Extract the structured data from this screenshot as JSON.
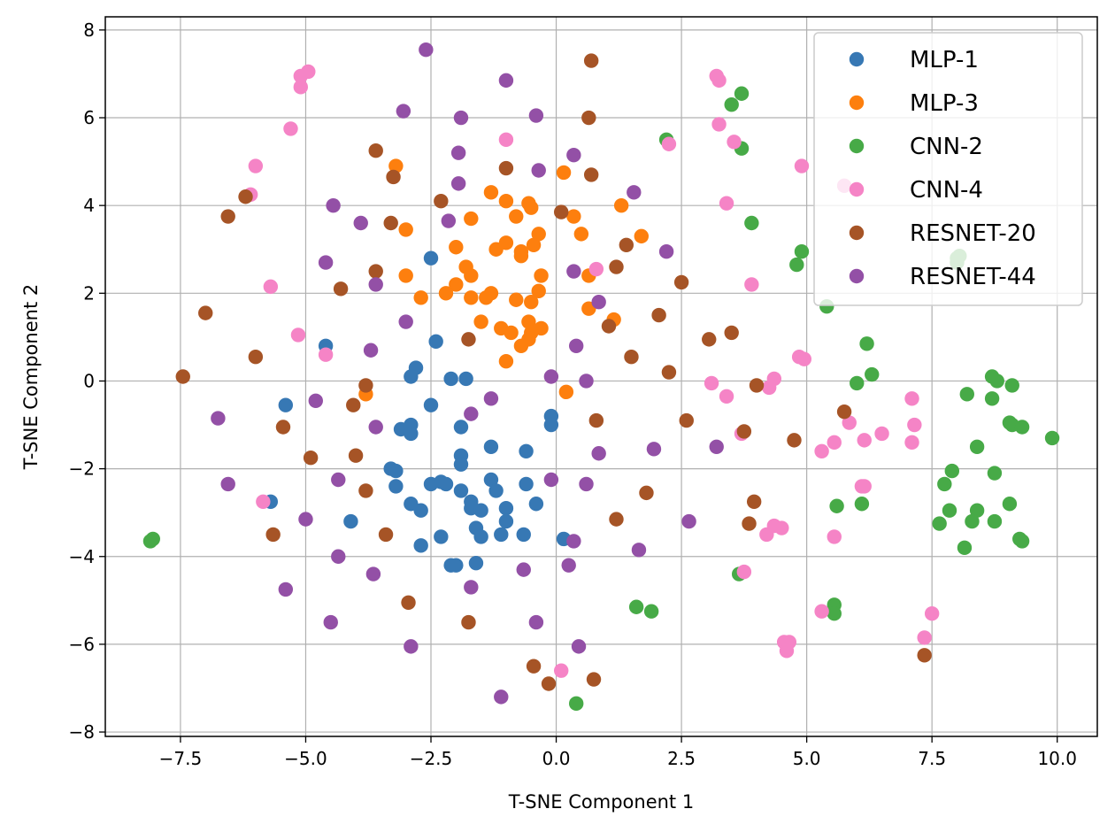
{
  "chart_data": {
    "type": "scatter",
    "xlabel": "T-SNE Component 1",
    "ylabel": "T-SNE Component 2",
    "xlim": [
      -9.0,
      10.8
    ],
    "ylim": [
      -8.1,
      8.3
    ],
    "xticks": [
      -7.5,
      -5.0,
      -2.5,
      0.0,
      2.5,
      5.0,
      7.5,
      10.0
    ],
    "xtick_labels": [
      "−7.5",
      "−5.0",
      "−2.5",
      "0.0",
      "2.5",
      "5.0",
      "7.5",
      "10.0"
    ],
    "yticks": [
      -8,
      -6,
      -4,
      -2,
      0,
      2,
      4,
      6,
      8
    ],
    "ytick_labels": [
      "−8",
      "−6",
      "−4",
      "−2",
      "0",
      "2",
      "4",
      "6",
      "8"
    ],
    "grid": true,
    "legend_position": "top-right",
    "series": [
      {
        "name": "MLP-1",
        "color": "#3778b4",
        "points": [
          [
            -2.5,
            2.8
          ],
          [
            -4.6,
            0.8
          ],
          [
            -2.4,
            0.9
          ],
          [
            -5.4,
            -0.55
          ],
          [
            -2.8,
            0.3
          ],
          [
            -2.9,
            0.1
          ],
          [
            -2.5,
            -0.55
          ],
          [
            -2.1,
            0.05
          ],
          [
            -1.8,
            0.05
          ],
          [
            -3.1,
            -1.1
          ],
          [
            -2.9,
            -1.0
          ],
          [
            -2.9,
            -1.2
          ],
          [
            -1.9,
            -1.05
          ],
          [
            -0.1,
            -0.8
          ],
          [
            -0.1,
            -1.0
          ],
          [
            -3.3,
            -2.0
          ],
          [
            -3.2,
            -2.05
          ],
          [
            -1.9,
            -1.7
          ],
          [
            -1.9,
            -1.9
          ],
          [
            -1.3,
            -1.5
          ],
          [
            -0.6,
            -1.6
          ],
          [
            -3.2,
            -2.4
          ],
          [
            -2.5,
            -2.35
          ],
          [
            -2.3,
            -2.3
          ],
          [
            -2.2,
            -2.35
          ],
          [
            -1.9,
            -2.5
          ],
          [
            -1.7,
            -2.75
          ],
          [
            -1.7,
            -2.9
          ],
          [
            -1.5,
            -2.95
          ],
          [
            -1.3,
            -2.25
          ],
          [
            -1.2,
            -2.5
          ],
          [
            -1.0,
            -2.9
          ],
          [
            -0.6,
            -2.35
          ],
          [
            -0.4,
            -2.8
          ],
          [
            -2.9,
            -2.8
          ],
          [
            -2.7,
            -2.95
          ],
          [
            -5.7,
            -2.75
          ],
          [
            -4.1,
            -3.2
          ],
          [
            -1.6,
            -3.35
          ],
          [
            -1.0,
            -3.2
          ],
          [
            -1.1,
            -3.5
          ],
          [
            -0.65,
            -3.5
          ],
          [
            -2.3,
            -3.55
          ],
          [
            -1.5,
            -3.55
          ],
          [
            -2.7,
            -3.75
          ],
          [
            -2.1,
            -4.2
          ],
          [
            -2.0,
            -4.2
          ],
          [
            -1.6,
            -4.15
          ],
          [
            0.15,
            -3.6
          ]
        ]
      },
      {
        "name": "MLP-3",
        "color": "#fd7f0e",
        "points": [
          [
            -3.2,
            4.9
          ],
          [
            0.15,
            4.75
          ],
          [
            -1.3,
            4.3
          ],
          [
            -1.0,
            4.1
          ],
          [
            -0.55,
            4.05
          ],
          [
            -0.5,
            3.95
          ],
          [
            1.3,
            4.0
          ],
          [
            -0.8,
            3.75
          ],
          [
            0.35,
            3.75
          ],
          [
            -1.7,
            3.7
          ],
          [
            -3.0,
            3.45
          ],
          [
            -0.35,
            3.35
          ],
          [
            0.5,
            3.35
          ],
          [
            1.7,
            3.3
          ],
          [
            -1.0,
            3.15
          ],
          [
            -1.2,
            3.0
          ],
          [
            -2.0,
            3.05
          ],
          [
            -0.45,
            3.1
          ],
          [
            -0.7,
            2.95
          ],
          [
            -0.7,
            2.85
          ],
          [
            -3.0,
            2.4
          ],
          [
            -1.8,
            2.6
          ],
          [
            -1.7,
            2.4
          ],
          [
            -0.3,
            2.4
          ],
          [
            0.65,
            2.4
          ],
          [
            -2.0,
            2.2
          ],
          [
            -2.2,
            2.0
          ],
          [
            -1.3,
            2.0
          ],
          [
            -0.35,
            2.05
          ],
          [
            -1.7,
            1.9
          ],
          [
            -1.4,
            1.9
          ],
          [
            -0.8,
            1.85
          ],
          [
            -0.5,
            1.8
          ],
          [
            -2.7,
            1.9
          ],
          [
            0.65,
            1.65
          ],
          [
            -1.5,
            1.35
          ],
          [
            -0.55,
            1.35
          ],
          [
            -1.1,
            1.2
          ],
          [
            -0.9,
            1.1
          ],
          [
            -0.5,
            1.1
          ],
          [
            -0.3,
            1.2
          ],
          [
            1.15,
            1.4
          ],
          [
            -0.7,
            0.8
          ],
          [
            -0.55,
            0.95
          ],
          [
            -1.0,
            0.45
          ],
          [
            0.2,
            -0.25
          ],
          [
            -3.8,
            -0.3
          ]
        ]
      },
      {
        "name": "CNN-2",
        "color": "#47aa47",
        "points": [
          [
            3.5,
            6.3
          ],
          [
            3.7,
            6.55
          ],
          [
            2.2,
            5.5
          ],
          [
            3.7,
            5.3
          ],
          [
            3.9,
            3.6
          ],
          [
            4.9,
            2.95
          ],
          [
            4.8,
            2.65
          ],
          [
            8.0,
            2.8
          ],
          [
            8.0,
            2.7
          ],
          [
            8.05,
            2.85
          ],
          [
            5.4,
            1.7
          ],
          [
            6.2,
            0.85
          ],
          [
            6.3,
            0.15
          ],
          [
            6.0,
            -0.05
          ],
          [
            8.7,
            0.1
          ],
          [
            8.8,
            0.0
          ],
          [
            9.1,
            -0.1
          ],
          [
            8.2,
            -0.3
          ],
          [
            8.7,
            -0.4
          ],
          [
            9.05,
            -0.95
          ],
          [
            9.1,
            -1.0
          ],
          [
            9.3,
            -1.05
          ],
          [
            9.9,
            -1.3
          ],
          [
            8.4,
            -1.5
          ],
          [
            7.9,
            -2.05
          ],
          [
            8.75,
            -2.1
          ],
          [
            7.75,
            -2.35
          ],
          [
            5.6,
            -2.85
          ],
          [
            6.1,
            -2.8
          ],
          [
            7.85,
            -2.95
          ],
          [
            8.4,
            -2.95
          ],
          [
            9.05,
            -2.8
          ],
          [
            7.65,
            -3.25
          ],
          [
            8.3,
            -3.2
          ],
          [
            8.75,
            -3.2
          ],
          [
            9.3,
            -3.65
          ],
          [
            9.25,
            -3.6
          ],
          [
            8.15,
            -3.8
          ],
          [
            3.65,
            -4.4
          ],
          [
            5.55,
            -5.1
          ],
          [
            5.55,
            -5.3
          ],
          [
            1.6,
            -5.15
          ],
          [
            1.9,
            -5.25
          ],
          [
            0.4,
            -7.35
          ],
          [
            -8.1,
            -3.65
          ],
          [
            -8.05,
            -3.6
          ]
        ]
      },
      {
        "name": "CNN-4",
        "color": "#f584c6",
        "points": [
          [
            -5.1,
            6.95
          ],
          [
            -4.95,
            7.05
          ],
          [
            -5.1,
            6.7
          ],
          [
            -5.3,
            5.75
          ],
          [
            -1.0,
            5.5
          ],
          [
            3.2,
            6.95
          ],
          [
            3.25,
            6.85
          ],
          [
            3.25,
            5.85
          ],
          [
            3.55,
            5.45
          ],
          [
            2.25,
            5.4
          ],
          [
            -6.0,
            4.9
          ],
          [
            4.9,
            4.9
          ],
          [
            5.75,
            4.45
          ],
          [
            -6.1,
            4.25
          ],
          [
            3.4,
            4.05
          ],
          [
            -5.7,
            2.15
          ],
          [
            3.9,
            2.2
          ],
          [
            0.8,
            2.55
          ],
          [
            -5.15,
            1.05
          ],
          [
            -4.6,
            0.6
          ],
          [
            4.85,
            0.55
          ],
          [
            4.95,
            0.5
          ],
          [
            4.35,
            0.05
          ],
          [
            3.1,
            -0.05
          ],
          [
            4.25,
            -0.15
          ],
          [
            3.4,
            -0.35
          ],
          [
            7.1,
            -0.4
          ],
          [
            5.85,
            -0.95
          ],
          [
            7.15,
            -1.0
          ],
          [
            3.7,
            -1.2
          ],
          [
            6.5,
            -1.2
          ],
          [
            5.55,
            -1.4
          ],
          [
            6.15,
            -1.35
          ],
          [
            7.1,
            -1.4
          ],
          [
            5.3,
            -1.6
          ],
          [
            6.15,
            -2.4
          ],
          [
            6.1,
            -2.4
          ],
          [
            -5.85,
            -2.75
          ],
          [
            4.35,
            -3.3
          ],
          [
            4.5,
            -3.35
          ],
          [
            4.2,
            -3.5
          ],
          [
            5.55,
            -3.55
          ],
          [
            3.75,
            -4.35
          ],
          [
            5.3,
            -5.25
          ],
          [
            7.5,
            -5.3
          ],
          [
            7.35,
            -5.85
          ],
          [
            4.55,
            -5.95
          ],
          [
            4.65,
            -5.95
          ],
          [
            4.6,
            -6.15
          ],
          [
            0.1,
            -6.6
          ]
        ]
      },
      {
        "name": "RESNET-20",
        "color": "#a65426",
        "points": [
          [
            0.7,
            7.3
          ],
          [
            0.65,
            6.0
          ],
          [
            -3.6,
            5.25
          ],
          [
            -1.0,
            4.85
          ],
          [
            -3.25,
            4.65
          ],
          [
            0.7,
            4.7
          ],
          [
            -6.2,
            4.2
          ],
          [
            -2.3,
            4.1
          ],
          [
            0.1,
            3.85
          ],
          [
            -6.55,
            3.75
          ],
          [
            -3.3,
            3.6
          ],
          [
            1.4,
            3.1
          ],
          [
            -3.6,
            2.5
          ],
          [
            1.2,
            2.6
          ],
          [
            2.5,
            2.25
          ],
          [
            -4.3,
            2.1
          ],
          [
            -7.0,
            1.55
          ],
          [
            2.05,
            1.5
          ],
          [
            1.05,
            1.25
          ],
          [
            3.5,
            1.1
          ],
          [
            3.05,
            0.95
          ],
          [
            -1.75,
            0.95
          ],
          [
            -6.0,
            0.55
          ],
          [
            1.5,
            0.55
          ],
          [
            2.25,
            0.2
          ],
          [
            -7.45,
            0.1
          ],
          [
            -3.8,
            -0.1
          ],
          [
            4.0,
            -0.1
          ],
          [
            -4.05,
            -0.55
          ],
          [
            5.75,
            -0.7
          ],
          [
            0.8,
            -0.9
          ],
          [
            2.6,
            -0.9
          ],
          [
            3.75,
            -1.15
          ],
          [
            -5.45,
            -1.05
          ],
          [
            4.75,
            -1.35
          ],
          [
            -4.9,
            -1.75
          ],
          [
            -4.0,
            -1.7
          ],
          [
            -3.8,
            -2.5
          ],
          [
            1.8,
            -2.55
          ],
          [
            3.95,
            -2.75
          ],
          [
            -5.65,
            -3.5
          ],
          [
            -3.4,
            -3.5
          ],
          [
            1.2,
            -3.15
          ],
          [
            3.85,
            -3.25
          ],
          [
            -2.95,
            -5.05
          ],
          [
            -1.75,
            -5.5
          ],
          [
            -0.45,
            -6.5
          ],
          [
            -0.15,
            -6.9
          ],
          [
            0.75,
            -6.8
          ],
          [
            7.35,
            -6.25
          ]
        ]
      },
      {
        "name": "RESNET-44",
        "color": "#9350a6",
        "points": [
          [
            -2.6,
            7.55
          ],
          [
            -1.0,
            6.85
          ],
          [
            -3.05,
            6.15
          ],
          [
            -1.9,
            6.0
          ],
          [
            -0.4,
            6.05
          ],
          [
            0.35,
            5.15
          ],
          [
            -1.95,
            5.2
          ],
          [
            -0.35,
            4.8
          ],
          [
            1.55,
            4.3
          ],
          [
            -1.95,
            4.5
          ],
          [
            -4.45,
            4.0
          ],
          [
            -2.15,
            3.65
          ],
          [
            -3.9,
            3.6
          ],
          [
            2.2,
            2.95
          ],
          [
            -4.6,
            2.7
          ],
          [
            0.35,
            2.5
          ],
          [
            -3.6,
            2.2
          ],
          [
            0.85,
            1.8
          ],
          [
            -3.0,
            1.35
          ],
          [
            0.4,
            0.8
          ],
          [
            -3.7,
            0.7
          ],
          [
            -0.1,
            0.1
          ],
          [
            0.6,
            0.0
          ],
          [
            -1.3,
            -0.4
          ],
          [
            -4.8,
            -0.45
          ],
          [
            -6.75,
            -0.85
          ],
          [
            -1.7,
            -0.75
          ],
          [
            -3.6,
            -1.05
          ],
          [
            0.85,
            -1.65
          ],
          [
            1.95,
            -1.55
          ],
          [
            3.2,
            -1.5
          ],
          [
            -4.35,
            -2.25
          ],
          [
            -6.55,
            -2.35
          ],
          [
            -0.1,
            -2.25
          ],
          [
            0.6,
            -2.35
          ],
          [
            -5.0,
            -3.15
          ],
          [
            2.65,
            -3.2
          ],
          [
            -0.65,
            -4.3
          ],
          [
            0.35,
            -3.65
          ],
          [
            1.65,
            -3.85
          ],
          [
            -4.35,
            -4.0
          ],
          [
            0.25,
            -4.2
          ],
          [
            -3.65,
            -4.4
          ],
          [
            -1.7,
            -4.7
          ],
          [
            -5.4,
            -4.75
          ],
          [
            -4.5,
            -5.5
          ],
          [
            -0.4,
            -5.5
          ],
          [
            -2.9,
            -6.05
          ],
          [
            0.45,
            -6.05
          ],
          [
            -1.1,
            -7.2
          ]
        ]
      }
    ]
  }
}
